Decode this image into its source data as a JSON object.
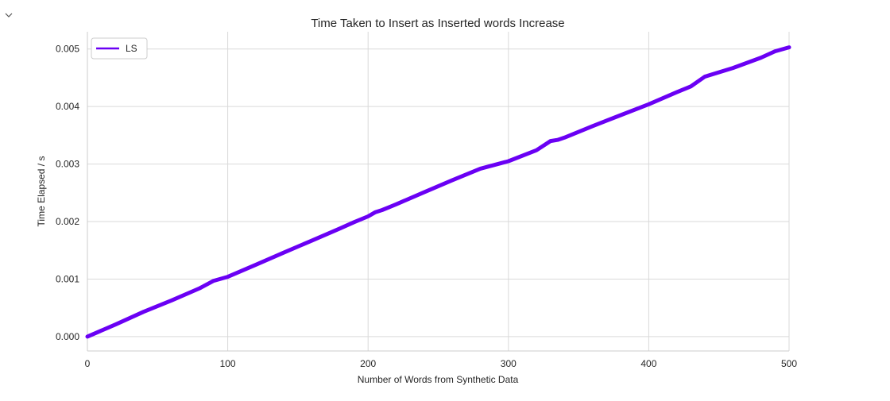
{
  "ui": {
    "collapse_icon": "chevron-down-icon"
  },
  "chart_data": {
    "type": "line",
    "title": "Time Taken to Insert as Inserted words Increase",
    "xlabel": "Number of Words from Synthetic Data",
    "ylabel": "Time Elapsed / s",
    "xlim": [
      0,
      500
    ],
    "ylim": [
      -0.00025,
      0.0053
    ],
    "xticks": [
      0,
      100,
      200,
      300,
      400,
      500
    ],
    "xtick_labels": [
      "0",
      "100",
      "200",
      "300",
      "400",
      "500"
    ],
    "yticks": [
      0.0,
      0.001,
      0.002,
      0.003,
      0.004,
      0.005
    ],
    "ytick_labels": [
      "0.000",
      "0.001",
      "0.002",
      "0.003",
      "0.004",
      "0.005"
    ],
    "grid": true,
    "legend_position": "top-left",
    "series": [
      {
        "name": "LS",
        "color": "#6a00f4",
        "x": [
          0,
          20,
          40,
          60,
          80,
          90,
          100,
          120,
          140,
          160,
          180,
          190,
          200,
          205,
          210,
          215,
          220,
          240,
          260,
          280,
          300,
          320,
          330,
          335,
          340,
          360,
          380,
          400,
          420,
          430,
          440,
          460,
          480,
          490,
          500
        ],
        "y": [
          0.0,
          0.00021,
          0.00043,
          0.00063,
          0.00084,
          0.00097,
          0.00104,
          0.00125,
          0.00146,
          0.00167,
          0.00188,
          0.00199,
          0.00209,
          0.00216,
          0.0022,
          0.00225,
          0.0023,
          0.00251,
          0.00272,
          0.00292,
          0.00305,
          0.00324,
          0.0034,
          0.00342,
          0.00346,
          0.00366,
          0.00385,
          0.00404,
          0.00425,
          0.00435,
          0.00452,
          0.00467,
          0.00485,
          0.00496,
          0.00503
        ]
      }
    ]
  }
}
